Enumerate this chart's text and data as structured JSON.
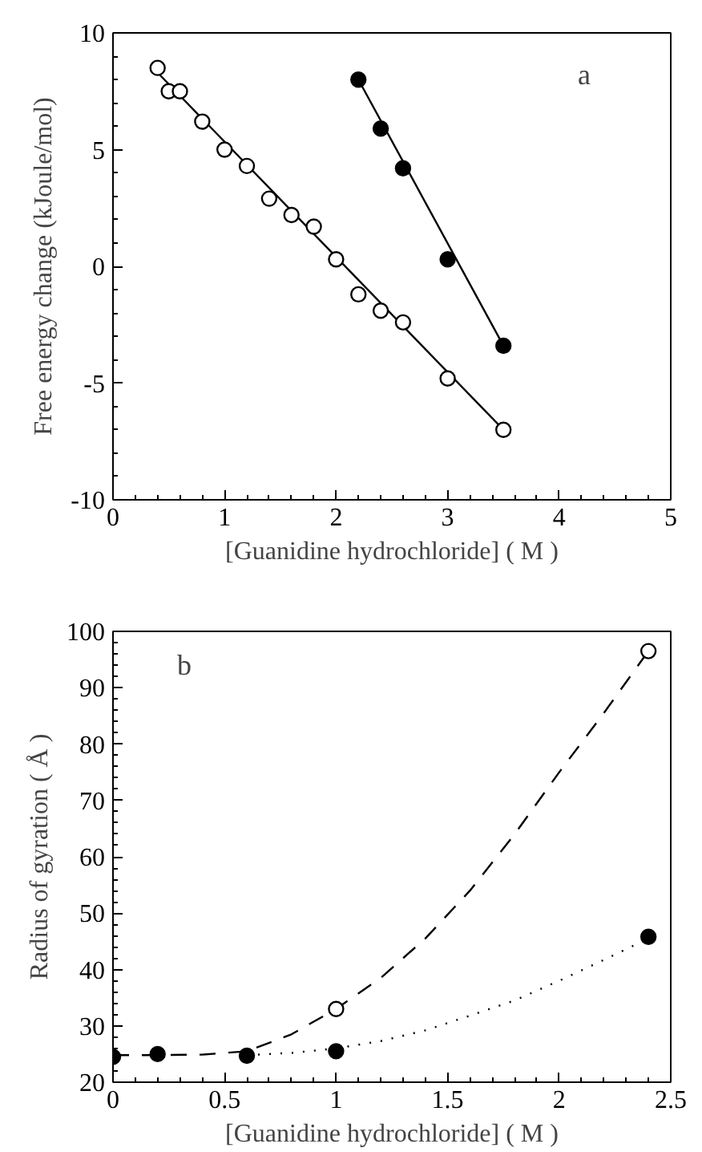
{
  "chart_data": [
    {
      "type": "scatter",
      "xlabel": "[Guanidine hydrochloride] ( M )",
      "ylabel": "Free energy change (kJoule/mol)",
      "annotations": [
        "a"
      ],
      "xlim": [
        0,
        5
      ],
      "xticks": [
        0,
        1,
        2,
        3,
        4,
        5
      ],
      "ylim": [
        -10,
        10
      ],
      "yticks": [
        -10,
        -5,
        0,
        5,
        10
      ],
      "grid": false,
      "series": [
        {
          "type": "line",
          "color": "#000000",
          "line_style": "solid",
          "marker": "none",
          "x": [
            0.4,
            3.5
          ],
          "values": [
            8.3,
            -7.0
          ]
        },
        {
          "type": "line",
          "color": "#000000",
          "line_style": "solid",
          "marker": "none",
          "x": [
            2.2,
            3.5
          ],
          "values": [
            8.0,
            -3.4
          ]
        },
        {
          "color": "#ffffff",
          "marker": "circle",
          "x": [
            0.4,
            0.5,
            0.6,
            0.8,
            1.0,
            1.2,
            1.4,
            1.6,
            1.8,
            2.0,
            2.2,
            2.4,
            2.6,
            3.0,
            3.5
          ],
          "values": [
            8.5,
            7.5,
            7.5,
            6.2,
            5.0,
            4.3,
            2.9,
            2.2,
            1.7,
            0.3,
            -1.2,
            -1.9,
            -2.4,
            -4.8,
            -7.0
          ]
        },
        {
          "color": "#000000",
          "marker": "circle",
          "x": [
            2.2,
            2.4,
            2.6,
            3.0,
            3.5
          ],
          "values": [
            8.0,
            5.9,
            4.2,
            0.3,
            -3.4
          ]
        }
      ]
    },
    {
      "type": "scatter",
      "xlabel": "[Guanidine hydrochloride] ( M )",
      "ylabel": "Radius of gyration ( Å )",
      "annotations": [
        "b"
      ],
      "xlim": [
        0,
        2.5
      ],
      "xticks": [
        0,
        0.5,
        1,
        1.5,
        2,
        2.5
      ],
      "ylim": [
        20,
        100
      ],
      "yticks": [
        20,
        30,
        40,
        50,
        60,
        70,
        80,
        90,
        100
      ],
      "grid": false,
      "series": [
        {
          "type": "line",
          "color": "#000000",
          "line_style": "dashed",
          "marker": "none",
          "x": [
            0,
            0.2,
            0.4,
            0.6,
            0.8,
            1.0,
            1.2,
            1.4,
            1.6,
            1.8,
            2.0,
            2.2,
            2.4
          ],
          "values": [
            24.8,
            24.8,
            24.9,
            25.5,
            28.5,
            33,
            38.5,
            45.5,
            54,
            64,
            75,
            85.5,
            96.5
          ]
        },
        {
          "type": "line",
          "color": "#000000",
          "line_style": "dotted",
          "marker": "none",
          "x": [
            0.6,
            0.8,
            1.0,
            1.2,
            1.4,
            1.6,
            1.8,
            2.0,
            2.2,
            2.4
          ],
          "values": [
            24.8,
            25.2,
            26,
            27.3,
            29.2,
            31.8,
            34.5,
            38,
            41.7,
            45.5
          ]
        },
        {
          "color": "#ffffff",
          "marker": "circle",
          "x": [
            1.0,
            2.4
          ],
          "values": [
            33,
            96.5
          ]
        },
        {
          "color": "#000000",
          "marker": "circle",
          "x": [
            0,
            0.2,
            0.6,
            1.0,
            2.4
          ],
          "values": [
            24.5,
            25,
            24.7,
            25.5,
            45.8
          ]
        }
      ]
    }
  ]
}
